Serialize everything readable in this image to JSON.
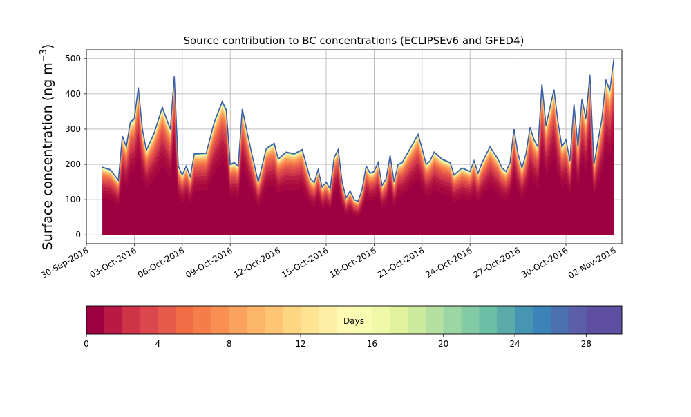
{
  "chart_data": {
    "type": "area",
    "title": "Source contribution to BC concentrations (ECLIPSEv6 and GFED4)",
    "xlabel": "",
    "ylabel": "Surface concentration (ng m",
    "ylabel_sup": "−3",
    "ylabel_close": ")",
    "ylim": [
      -25,
      525
    ],
    "yticks": [
      0,
      100,
      200,
      300,
      400,
      500
    ],
    "xlim": [
      "2016-09-30T00:00",
      "2016-11-02T12:00"
    ],
    "xticks": [
      "2016-09-30",
      "2016-10-03",
      "2016-10-06",
      "2016-10-09",
      "2016-10-12",
      "2016-10-15",
      "2016-10-18",
      "2016-10-21",
      "2016-10-24",
      "2016-10-27",
      "2016-10-30",
      "2016-11-02"
    ],
    "xtick_labels": [
      "30-Sep-2016",
      "03-Oct-2016",
      "06-Oct-2016",
      "09-Oct-2016",
      "12-Oct-2016",
      "15-Oct-2016",
      "18-Oct-2016",
      "21-Oct-2016",
      "24-Oct-2016",
      "27-Oct-2016",
      "30-Oct-2016",
      "02-Nov-2016"
    ],
    "grid": true,
    "total_series": {
      "name": "",
      "points": [
        [
          "2016-10-01T00:00",
          192
        ],
        [
          "2016-10-01T12:00",
          185
        ],
        [
          "2016-10-02T00:00",
          155
        ],
        [
          "2016-10-02T06:00",
          280
        ],
        [
          "2016-10-02T12:00",
          250
        ],
        [
          "2016-10-02T18:00",
          320
        ],
        [
          "2016-10-03T00:00",
          330
        ],
        [
          "2016-10-03T06:00",
          418
        ],
        [
          "2016-10-03T12:00",
          300
        ],
        [
          "2016-10-03T18:00",
          240
        ],
        [
          "2016-10-04T06:00",
          290
        ],
        [
          "2016-10-04T18:00",
          362
        ],
        [
          "2016-10-05T06:00",
          300
        ],
        [
          "2016-10-05T12:00",
          450
        ],
        [
          "2016-10-05T18:00",
          195
        ],
        [
          "2016-10-06T00:00",
          170
        ],
        [
          "2016-10-06T06:00",
          195
        ],
        [
          "2016-10-06T12:00",
          165
        ],
        [
          "2016-10-06T18:00",
          230
        ],
        [
          "2016-10-07T12:00",
          232
        ],
        [
          "2016-10-08T00:00",
          320
        ],
        [
          "2016-10-08T12:00",
          378
        ],
        [
          "2016-10-08T18:00",
          355
        ],
        [
          "2016-10-09T00:00",
          200
        ],
        [
          "2016-10-09T06:00",
          205
        ],
        [
          "2016-10-09T12:00",
          195
        ],
        [
          "2016-10-09T18:00",
          357
        ],
        [
          "2016-10-10T06:00",
          250
        ],
        [
          "2016-10-10T18:00",
          150
        ],
        [
          "2016-10-11T06:00",
          245
        ],
        [
          "2016-10-11T18:00",
          260
        ],
        [
          "2016-10-12T00:00",
          215
        ],
        [
          "2016-10-12T12:00",
          235
        ],
        [
          "2016-10-13T00:00",
          230
        ],
        [
          "2016-10-13T12:00",
          242
        ],
        [
          "2016-10-14T00:00",
          160
        ],
        [
          "2016-10-14T06:00",
          148
        ],
        [
          "2016-10-14T12:00",
          185
        ],
        [
          "2016-10-14T18:00",
          135
        ],
        [
          "2016-10-15T00:00",
          150
        ],
        [
          "2016-10-15T06:00",
          130
        ],
        [
          "2016-10-15T12:00",
          220
        ],
        [
          "2016-10-15T18:00",
          242
        ],
        [
          "2016-10-16T00:00",
          150
        ],
        [
          "2016-10-16T06:00",
          105
        ],
        [
          "2016-10-16T12:00",
          125
        ],
        [
          "2016-10-16T18:00",
          100
        ],
        [
          "2016-10-17T00:00",
          95
        ],
        [
          "2016-10-17T06:00",
          130
        ],
        [
          "2016-10-17T12:00",
          195
        ],
        [
          "2016-10-17T18:00",
          175
        ],
        [
          "2016-10-18T00:00",
          180
        ],
        [
          "2016-10-18T06:00",
          205
        ],
        [
          "2016-10-18T12:00",
          140
        ],
        [
          "2016-10-18T18:00",
          160
        ],
        [
          "2016-10-19T00:00",
          225
        ],
        [
          "2016-10-19T06:00",
          150
        ],
        [
          "2016-10-19T12:00",
          200
        ],
        [
          "2016-10-19T18:00",
          205
        ],
        [
          "2016-10-20T06:00",
          245
        ],
        [
          "2016-10-20T18:00",
          285
        ],
        [
          "2016-10-21T00:00",
          245
        ],
        [
          "2016-10-21T06:00",
          200
        ],
        [
          "2016-10-21T12:00",
          210
        ],
        [
          "2016-10-21T18:00",
          235
        ],
        [
          "2016-10-22T06:00",
          215
        ],
        [
          "2016-10-22T18:00",
          205
        ],
        [
          "2016-10-23T00:00",
          170
        ],
        [
          "2016-10-23T12:00",
          190
        ],
        [
          "2016-10-24T00:00",
          180
        ],
        [
          "2016-10-24T06:00",
          210
        ],
        [
          "2016-10-24T12:00",
          175
        ],
        [
          "2016-10-24T18:00",
          205
        ],
        [
          "2016-10-25T06:00",
          250
        ],
        [
          "2016-10-25T18:00",
          215
        ],
        [
          "2016-10-26T00:00",
          190
        ],
        [
          "2016-10-26T06:00",
          180
        ],
        [
          "2016-10-26T12:00",
          205
        ],
        [
          "2016-10-26T18:00",
          300
        ],
        [
          "2016-10-27T00:00",
          230
        ],
        [
          "2016-10-27T06:00",
          190
        ],
        [
          "2016-10-27T12:00",
          230
        ],
        [
          "2016-10-27T18:00",
          305
        ],
        [
          "2016-10-28T00:00",
          270
        ],
        [
          "2016-10-28T06:00",
          250
        ],
        [
          "2016-10-28T12:00",
          428
        ],
        [
          "2016-10-28T18:00",
          310
        ],
        [
          "2016-10-29T06:00",
          412
        ],
        [
          "2016-10-29T12:00",
          320
        ],
        [
          "2016-10-29T18:00",
          250
        ],
        [
          "2016-10-30T00:00",
          270
        ],
        [
          "2016-10-30T06:00",
          210
        ],
        [
          "2016-10-30T12:00",
          370
        ],
        [
          "2016-10-30T18:00",
          250
        ],
        [
          "2016-10-31T00:00",
          385
        ],
        [
          "2016-10-31T06:00",
          330
        ],
        [
          "2016-10-31T12:00",
          455
        ],
        [
          "2016-10-31T18:00",
          200
        ],
        [
          "2016-11-01T06:00",
          330
        ],
        [
          "2016-11-01T12:00",
          440
        ],
        [
          "2016-11-01T18:00",
          410
        ],
        [
          "2016-11-02T00:00",
          500
        ]
      ]
    },
    "colorbar": {
      "label": "Days",
      "range": [
        0,
        30
      ],
      "bins": 30,
      "ticks": [
        0,
        4,
        8,
        12,
        16,
        20,
        24,
        28
      ],
      "colors": [
        "#9e0142",
        "#b81a44",
        "#cd3448",
        "#db474c",
        "#e65a4c",
        "#ef6c45",
        "#f57d4a",
        "#f98f53",
        "#fba35e",
        "#fdb567",
        "#fec574",
        "#fed583",
        "#fee393",
        "#feefa4",
        "#fefab4",
        "#f8fcb3",
        "#eff8a6",
        "#e0f29b",
        "#ccea9e",
        "#b5e0a2",
        "#9cd6a4",
        "#82cba5",
        "#6bbfa5",
        "#5aaba9",
        "#4695b3",
        "#3c83b9",
        "#4a70b0",
        "#5a5fa8",
        "#5e4fa2",
        "#5e4fa2"
      ]
    },
    "band_colors": [
      "#9e0142",
      "#a8073f",
      "#b0113e",
      "#bb1e44",
      "#cd3448",
      "#d94349",
      "#e4564b",
      "#ee6a46",
      "#f67e4b",
      "#fa9456",
      "#fcab60",
      "#fdc172",
      "#fed586",
      "#fee79a",
      "#fef5b0",
      "#e6f598",
      "#abdda4",
      "#66c2a5",
      "#3288bd",
      "#5e4fa2"
    ],
    "band_fractions": [
      0.55,
      0.07,
      0.05,
      0.05,
      0.04,
      0.04,
      0.035,
      0.03,
      0.025,
      0.022,
      0.018,
      0.016,
      0.012,
      0.01,
      0.008,
      0.006,
      0.005,
      0.004,
      0.003,
      0.004
    ],
    "outline_color": "#3a5da8"
  }
}
